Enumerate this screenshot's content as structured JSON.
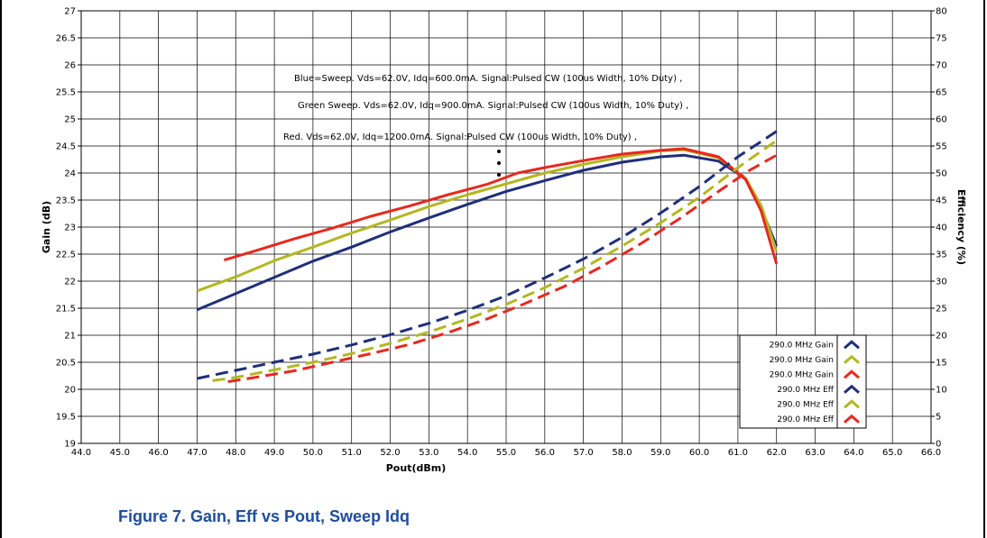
{
  "caption": "Figure 7. Gain, Eff vs Pout, Sweep Idq",
  "chart_data": {
    "type": "line",
    "xlabel": "Pout(dBm)",
    "ylabel": "Gain (dB)",
    "y2label": "Efficiency (%)",
    "xlim": [
      44,
      66
    ],
    "ylim": [
      19,
      27
    ],
    "y2lim": [
      0,
      80
    ],
    "x_ticks": [
      "44.0",
      "45.0",
      "46.0",
      "47.0",
      "48.0",
      "49.0",
      "50.0",
      "51.0",
      "52.0",
      "53.0",
      "54.0",
      "55.0",
      "56.0",
      "57.0",
      "58.0",
      "59.0",
      "60.0",
      "61.0",
      "62.0",
      "63.0",
      "64.0",
      "65.0",
      "66.0"
    ],
    "y_ticks": [
      "19",
      "19.5",
      "20",
      "20.5",
      "21",
      "21.5",
      "22",
      "22.5",
      "23",
      "23.5",
      "24",
      "24.5",
      "25",
      "25.5",
      "26",
      "26.5",
      "27"
    ],
    "y2_ticks": [
      "0",
      "5",
      "10",
      "15",
      "20",
      "25",
      "30",
      "35",
      "40",
      "45",
      "50",
      "55",
      "60",
      "65",
      "70",
      "75",
      "80"
    ],
    "grid": true,
    "annotations": [
      "Blue=Sweep. Vds=62.0V, Idq=600.0mA. Signal:Pulsed CW (100us Width, 10% Duty) ,",
      "Green Sweep. Vds=62.0V, Idq=900.0mA. Signal:Pulsed CW (100us Width, 10% Duty) ,",
      "Red. Vds=62.0V, Idq=1200.0mA. Signal:Pulsed CW (100us Width, 10% Duty) ,"
    ],
    "legend_position": "bottom-right",
    "series": [
      {
        "name": "290.0 MHz Gain",
        "color": "#1f2f7a",
        "style": "solid",
        "axis": "left",
        "x": [
          47.0,
          48.0,
          49.0,
          50.0,
          51.0,
          52.0,
          53.0,
          54.0,
          55.0,
          56.0,
          57.0,
          58.0,
          59.0,
          59.6,
          60.5,
          61.2,
          61.6,
          62.0
        ],
        "y": [
          21.47,
          21.77,
          22.07,
          22.37,
          22.63,
          22.91,
          23.17,
          23.42,
          23.66,
          23.86,
          24.05,
          24.2,
          24.3,
          24.33,
          24.22,
          23.9,
          23.35,
          22.65
        ]
      },
      {
        "name": "290.0 MHz Gain",
        "color": "#b3b821",
        "style": "solid",
        "axis": "left",
        "x": [
          47.0,
          48.0,
          49.0,
          50.0,
          51.0,
          52.0,
          53.0,
          54.0,
          55.0,
          56.0,
          57.0,
          58.0,
          59.0,
          59.6,
          60.5,
          61.2,
          61.6,
          62.0
        ],
        "y": [
          21.82,
          22.08,
          22.38,
          22.63,
          22.89,
          23.13,
          23.38,
          23.6,
          23.8,
          24.0,
          24.16,
          24.3,
          24.41,
          24.43,
          24.28,
          23.9,
          23.4,
          22.55
        ]
      },
      {
        "name": "290.0 MHz Gain",
        "color": "#e8281e",
        "style": "solid",
        "axis": "left",
        "x": [
          47.7,
          48.5,
          49.5,
          50.5,
          51.5,
          52.5,
          53.5,
          54.5,
          55.3,
          56.0,
          57.0,
          58.0,
          59.0,
          59.6,
          60.5,
          61.2,
          61.6,
          62.0
        ],
        "y": [
          22.39,
          22.56,
          22.78,
          22.98,
          23.2,
          23.39,
          23.6,
          23.79,
          24.0,
          24.1,
          24.23,
          24.35,
          24.42,
          24.45,
          24.3,
          23.88,
          23.3,
          22.32
        ]
      },
      {
        "name": "290.0 MHz Eff",
        "color": "#1f2f7a",
        "style": "dashed",
        "axis": "right",
        "x": [
          47.0,
          48.0,
          49.0,
          50.0,
          51.0,
          52.0,
          53.0,
          54.0,
          55.0,
          56.0,
          57.0,
          58.0,
          59.0,
          60.0,
          61.0,
          62.0
        ],
        "y": [
          12.0,
          13.5,
          15.0,
          16.5,
          18.2,
          20.1,
          22.2,
          24.6,
          27.3,
          30.6,
          34.1,
          38.1,
          42.6,
          47.5,
          53.0,
          57.7
        ]
      },
      {
        "name": "290.0 MHz Eff",
        "color": "#b3b821",
        "style": "dashed",
        "axis": "right",
        "x": [
          47.4,
          48.0,
          49.0,
          50.0,
          51.0,
          52.0,
          53.0,
          54.0,
          55.0,
          56.0,
          57.0,
          58.0,
          59.0,
          60.0,
          61.0,
          62.0
        ],
        "y": [
          11.6,
          12.2,
          13.6,
          15.0,
          16.6,
          18.5,
          20.6,
          23.0,
          25.7,
          28.8,
          32.4,
          36.5,
          40.8,
          45.5,
          51.0,
          56.0
        ]
      },
      {
        "name": "290.0 MHz Eff",
        "color": "#e8281e",
        "style": "dashed",
        "axis": "right",
        "x": [
          47.8,
          48.5,
          49.5,
          50.5,
          51.5,
          52.5,
          53.5,
          54.5,
          55.5,
          56.5,
          57.5,
          58.5,
          59.5,
          60.5,
          61.3,
          62.0
        ],
        "y": [
          11.4,
          12.2,
          13.4,
          15.0,
          16.6,
          18.3,
          20.5,
          23.0,
          25.9,
          29.0,
          32.8,
          37.0,
          41.6,
          46.6,
          50.5,
          53.3
        ]
      }
    ]
  }
}
